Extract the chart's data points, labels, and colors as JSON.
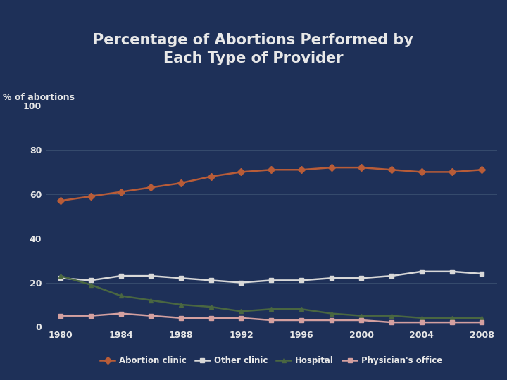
{
  "title": "Percentage of Abortions Performed by\nEach Type of Provider",
  "ylabel": "% of abortions",
  "years": [
    1980,
    1982,
    1984,
    1986,
    1988,
    1990,
    1992,
    1994,
    1996,
    1998,
    2000,
    2002,
    2004,
    2006,
    2008
  ],
  "abortion_clinic": [
    57,
    59,
    61,
    63,
    65,
    68,
    70,
    71,
    71,
    72,
    72,
    71,
    70,
    70,
    71
  ],
  "other_clinic": [
    22,
    21,
    23,
    23,
    22,
    21,
    20,
    21,
    21,
    22,
    22,
    23,
    25,
    25,
    24
  ],
  "hospital": [
    23,
    19,
    14,
    12,
    10,
    9,
    7,
    8,
    8,
    6,
    5,
    5,
    4,
    4,
    4
  ],
  "physicians_office": [
    5,
    5,
    6,
    5,
    4,
    4,
    4,
    3,
    3,
    3,
    3,
    2,
    2,
    2,
    2
  ],
  "abortion_clinic_color": "#b85c38",
  "other_clinic_color": "#d8d8d8",
  "hospital_color": "#4a6741",
  "physicians_office_color": "#d4a0a0",
  "background_color": "#1e3058",
  "plot_bg_color": "#1e3058",
  "title_color": "#e8e8e8",
  "ylabel_color": "#e8e8e8",
  "tick_color": "#e8e8e8",
  "grid_color": "#3a5070",
  "separator_color": "#a04030",
  "ylim": [
    0,
    100
  ],
  "yticks": [
    0,
    20,
    40,
    60,
    80,
    100
  ],
  "xticks": [
    1980,
    1984,
    1988,
    1992,
    1996,
    2000,
    2004,
    2008
  ],
  "legend_labels": [
    "Abortion clinic",
    "Other clinic",
    "Hospital",
    "Physician's office"
  ],
  "marker_ac": "D",
  "marker_oc": "s",
  "marker_ho": "^",
  "marker_po": "s",
  "marker_size": 5,
  "linewidth": 1.8
}
